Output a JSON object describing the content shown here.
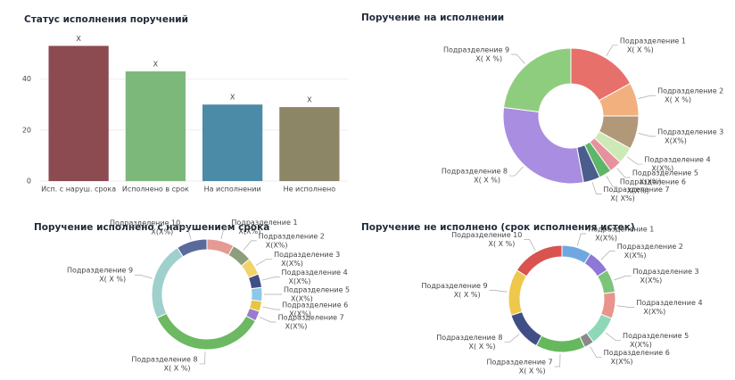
{
  "chart_data": [
    {
      "type": "bar",
      "title": "Статус исполнения поручений",
      "categories": [
        "Исп. с наруш. срока",
        "Исполнено в срок",
        "На исполнении",
        "Не исполнено"
      ],
      "values": [
        53,
        43,
        30,
        29
      ],
      "value_labels": [
        "X",
        "X",
        "X",
        "X"
      ],
      "colors": [
        "#8b4b50",
        "#7db87b",
        "#4b8ba8",
        "#8c8566"
      ],
      "ylim": [
        0,
        57
      ],
      "yticks": [
        0,
        20,
        40
      ],
      "grid": true
    },
    {
      "type": "pie",
      "title": "Поручение на исполнении",
      "categories": [
        "Подразделение 1",
        "Подразделение 2",
        "Подразделение 3",
        "Подразделение 4",
        "Подразделение 5",
        "Подразделение 6",
        "Подразделение 7",
        "Подразделение 8",
        "Подразделение 9"
      ],
      "values": [
        17,
        8,
        8,
        4,
        3,
        3,
        4,
        30,
        23
      ],
      "value_labels": [
        "X( X %)",
        "X( X %)",
        "X(X%)",
        "X(X%)",
        "X(X%)",
        "X(X%)",
        "X( X%)",
        "X( X %)",
        "X( X %)"
      ],
      "colors": [
        "#e8706b",
        "#f2b07e",
        "#b09878",
        "#cde9b6",
        "#e6929c",
        "#5fb568",
        "#4a5d8c",
        "#a98de0",
        "#8fcd7e"
      ]
    },
    {
      "type": "pie",
      "title": "Поручение исполнено с нарушением срока",
      "categories": [
        "Подразделение 1",
        "Подразделение 2",
        "Подразделение 3",
        "Подразделение 4",
        "Подразделение 5",
        "Подразделение 6",
        "Подразделение 7",
        "Подразделение 8",
        "Подразделение 9",
        "Подразделение 10"
      ],
      "values": [
        8,
        6,
        5,
        4,
        4,
        3,
        3,
        35,
        23,
        9
      ],
      "value_labels": [
        "X(X%)",
        "X(X%)",
        "X(X%)",
        "X(X%)",
        "X(X%)",
        "X(X%)",
        "X(X%)",
        "X( X %)",
        "X( X %)",
        "X(X%)"
      ],
      "colors": [
        "#e59a94",
        "#8c9e7c",
        "#f0d46a",
        "#3f4f86",
        "#8cc8e8",
        "#e8c440",
        "#9a7ccc",
        "#6db862",
        "#9fd0cc",
        "#5a6a9c"
      ]
    },
    {
      "type": "pie",
      "title": "Поручение не исполнено (срок исполнения истек)",
      "categories": [
        "Подразделение 1",
        "Подразделение 2",
        "Подразделение 3",
        "Подразделение 4",
        "Подразделение 5",
        "Подразделение 6",
        "Подразделение 7",
        "Подразделение 8",
        "Подразделение 9",
        "Подразделение 10"
      ],
      "values": [
        9,
        7,
        7,
        8,
        9,
        3,
        15,
        12,
        14,
        16
      ],
      "value_labels": [
        "X(X%)",
        "X(X%)",
        "X(X%)",
        "X(X%)",
        "X(X%)",
        "X(X%)",
        "X( X %)",
        "X( X %)",
        "X( X %)",
        "X( X %)"
      ],
      "colors": [
        "#6fa8e0",
        "#8d78d8",
        "#7cc47a",
        "#e8948c",
        "#8ed8b8",
        "#8a8a8a",
        "#66b85c",
        "#3f4f86",
        "#eec84a",
        "#d9534f"
      ]
    }
  ]
}
